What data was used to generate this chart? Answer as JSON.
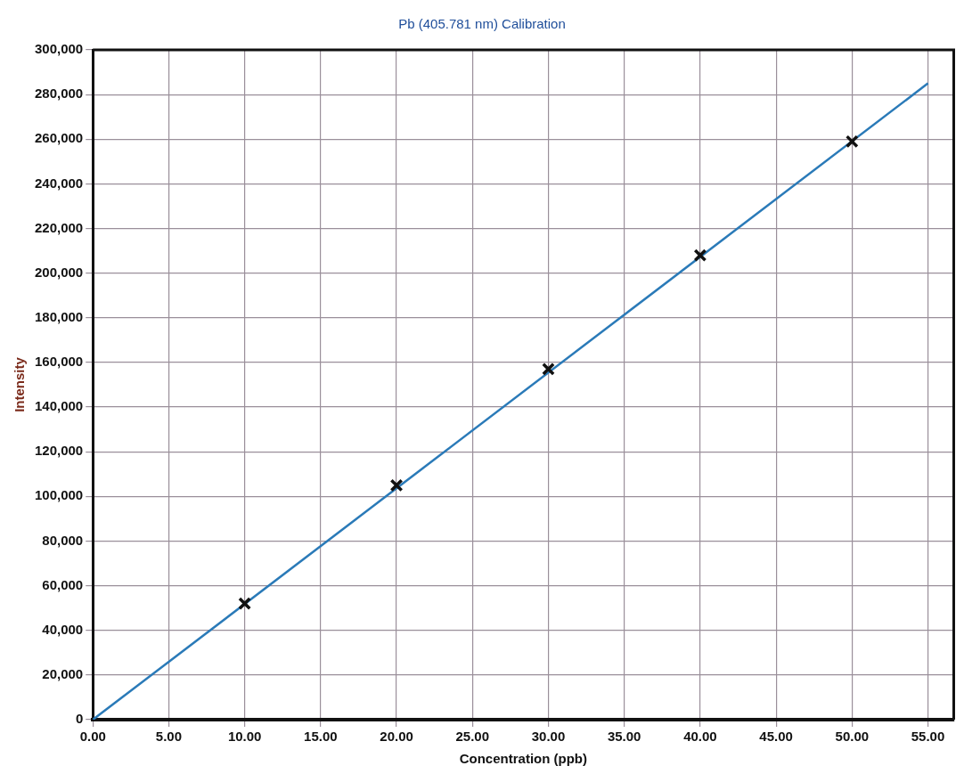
{
  "chart_data": {
    "type": "scatter",
    "title": "Pb (405.781 nm) Calibration",
    "xlabel": "Concentration (ppb)",
    "ylabel": "Intensity",
    "xlim": [
      0,
      56.7
    ],
    "ylim": [
      0,
      300000
    ],
    "xticks": [
      {
        "value": 0,
        "label": "0.00"
      },
      {
        "value": 5,
        "label": "5.00"
      },
      {
        "value": 10,
        "label": "10.00"
      },
      {
        "value": 15,
        "label": "15.00"
      },
      {
        "value": 20,
        "label": "20.00"
      },
      {
        "value": 25,
        "label": "25.00"
      },
      {
        "value": 30,
        "label": "30.00"
      },
      {
        "value": 35,
        "label": "35.00"
      },
      {
        "value": 40,
        "label": "40.00"
      },
      {
        "value": 45,
        "label": "45.00"
      },
      {
        "value": 50,
        "label": "50.00"
      },
      {
        "value": 55,
        "label": "55.00"
      }
    ],
    "yticks": [
      {
        "value": 0,
        "label": "0"
      },
      {
        "value": 20000,
        "label": "20,000"
      },
      {
        "value": 40000,
        "label": "40,000"
      },
      {
        "value": 60000,
        "label": "60,000"
      },
      {
        "value": 80000,
        "label": "80,000"
      },
      {
        "value": 100000,
        "label": "100,000"
      },
      {
        "value": 120000,
        "label": "120,000"
      },
      {
        "value": 140000,
        "label": "140,000"
      },
      {
        "value": 160000,
        "label": "160,000"
      },
      {
        "value": 180000,
        "label": "180,000"
      },
      {
        "value": 200000,
        "label": "200,000"
      },
      {
        "value": 220000,
        "label": "220,000"
      },
      {
        "value": 240000,
        "label": "240,000"
      },
      {
        "value": 260000,
        "label": "260,000"
      },
      {
        "value": 280000,
        "label": "280,000"
      },
      {
        "value": 300000,
        "label": "300,000"
      }
    ],
    "grid": true,
    "line_style": "solid",
    "series": [
      {
        "color": "#111111",
        "marker": "cross",
        "x": [
          10,
          20,
          30,
          40,
          50
        ],
        "values": [
          52000,
          105000,
          157000,
          208000,
          259000
        ]
      },
      {
        "type": "line",
        "color": "#2a7ab8",
        "marker": "none",
        "x": [
          0,
          55
        ],
        "values": [
          0,
          285000
        ]
      }
    ]
  }
}
